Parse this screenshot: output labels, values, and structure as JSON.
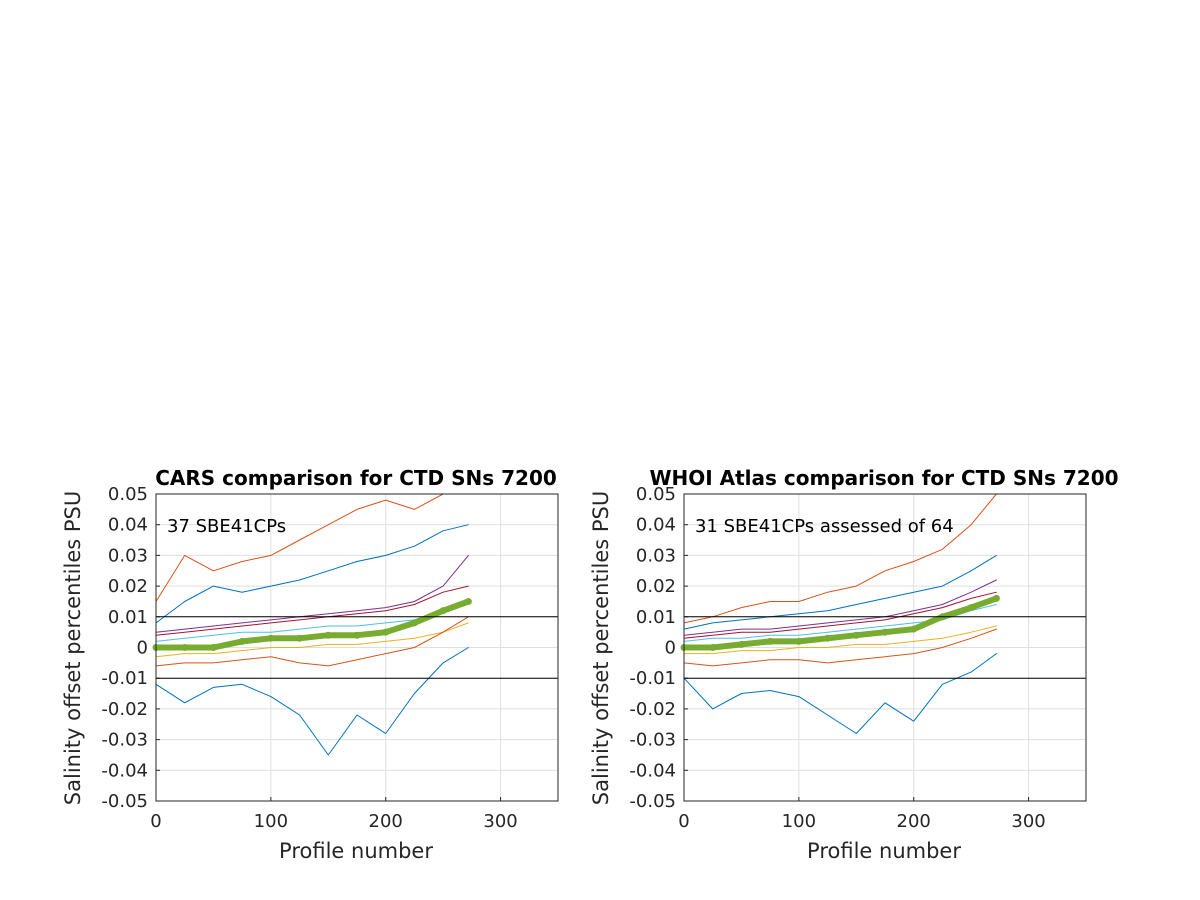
{
  "chart_data": [
    {
      "type": "line",
      "title": "CARS comparison for CTD SNs 7200",
      "xlabel": "Profile number",
      "ylabel": "Salinity offset percentiles PSU",
      "annotation": "37 SBE41CPs",
      "xlim": [
        0,
        350
      ],
      "ylim": [
        -0.05,
        0.05
      ],
      "xticks": [
        "0",
        "100",
        "200",
        "300"
      ],
      "yticks": [
        "-0.05",
        "-0.04",
        "-0.03",
        "-0.02",
        "-0.01",
        "0",
        "0.01",
        "0.02",
        "0.03",
        "0.04",
        "0.05"
      ],
      "grid": true,
      "reference_lines": [
        0.01,
        -0.01
      ],
      "series": [
        {
          "color": "#D95319",
          "x": [
            0,
            25,
            50,
            75,
            100,
            125,
            150,
            175,
            200,
            225,
            250,
            272
          ],
          "values": [
            0.015,
            0.03,
            0.025,
            0.028,
            0.03,
            0.035,
            0.04,
            0.045,
            0.048,
            0.045,
            0.05,
            0.05
          ]
        },
        {
          "color": "#0072BD",
          "x": [
            0,
            25,
            50,
            75,
            100,
            125,
            150,
            175,
            200,
            225,
            250,
            272
          ],
          "values": [
            0.008,
            0.015,
            0.02,
            0.018,
            0.02,
            0.022,
            0.025,
            0.028,
            0.03,
            0.033,
            0.038,
            0.04
          ]
        },
        {
          "color": "#7E2F8E",
          "x": [
            0,
            25,
            50,
            75,
            100,
            125,
            150,
            175,
            200,
            225,
            250,
            272
          ],
          "values": [
            0.005,
            0.006,
            0.007,
            0.008,
            0.009,
            0.01,
            0.011,
            0.012,
            0.013,
            0.015,
            0.02,
            0.03
          ]
        },
        {
          "color": "#A2142F",
          "x": [
            0,
            25,
            50,
            75,
            100,
            125,
            150,
            175,
            200,
            225,
            250,
            272
          ],
          "values": [
            0.004,
            0.005,
            0.006,
            0.007,
            0.008,
            0.009,
            0.01,
            0.011,
            0.012,
            0.014,
            0.018,
            0.02
          ]
        },
        {
          "color": "#4DBEEE",
          "x": [
            0,
            25,
            50,
            75,
            100,
            125,
            150,
            175,
            200,
            225,
            250,
            272
          ],
          "values": [
            0.002,
            0.003,
            0.004,
            0.005,
            0.005,
            0.006,
            0.007,
            0.007,
            0.008,
            0.009,
            0.012,
            0.015
          ]
        },
        {
          "color": "#EDB120",
          "x": [
            0,
            25,
            50,
            75,
            100,
            125,
            150,
            175,
            200,
            225,
            250,
            272
          ],
          "values": [
            -0.003,
            -0.002,
            -0.002,
            -0.001,
            0.0,
            0.0,
            0.001,
            0.001,
            0.002,
            0.003,
            0.005,
            0.008
          ]
        },
        {
          "color": "#D95319",
          "x": [
            0,
            25,
            50,
            75,
            100,
            125,
            150,
            175,
            200,
            225,
            250,
            272
          ],
          "values": [
            -0.006,
            -0.005,
            -0.005,
            -0.004,
            -0.003,
            -0.005,
            -0.006,
            -0.004,
            -0.002,
            0.0,
            0.005,
            0.01
          ]
        },
        {
          "color": "#0072BD",
          "x": [
            0,
            25,
            50,
            75,
            100,
            125,
            150,
            175,
            200,
            225,
            250,
            272
          ],
          "values": [
            -0.012,
            -0.018,
            -0.013,
            -0.012,
            -0.016,
            -0.022,
            -0.035,
            -0.022,
            -0.028,
            -0.015,
            -0.005,
            0.0
          ]
        },
        {
          "color": "#77AC30",
          "x": [
            0,
            25,
            50,
            75,
            100,
            125,
            150,
            175,
            200,
            225,
            250,
            272
          ],
          "values": [
            0.0,
            0.0,
            0.0,
            0.002,
            0.003,
            0.003,
            0.004,
            0.004,
            0.005,
            0.008,
            0.012,
            0.015
          ]
        }
      ]
    },
    {
      "type": "line",
      "title": "WHOI Atlas comparison for CTD SNs 7200",
      "xlabel": "Profile number",
      "ylabel": "Salinity offset percentiles PSU",
      "annotation": "31 SBE41CPs assessed of 64",
      "xlim": [
        0,
        350
      ],
      "ylim": [
        -0.05,
        0.05
      ],
      "xticks": [
        "0",
        "100",
        "200",
        "300"
      ],
      "yticks": [
        "-0.05",
        "-0.04",
        "-0.03",
        "-0.02",
        "-0.01",
        "0",
        "0.01",
        "0.02",
        "0.03",
        "0.04",
        "0.05"
      ],
      "grid": true,
      "reference_lines": [
        0.01,
        -0.01
      ],
      "series": [
        {
          "color": "#D95319",
          "x": [
            0,
            25,
            50,
            75,
            100,
            125,
            150,
            175,
            200,
            225,
            250,
            272
          ],
          "values": [
            0.008,
            0.01,
            0.013,
            0.015,
            0.015,
            0.018,
            0.02,
            0.025,
            0.028,
            0.032,
            0.04,
            0.05
          ]
        },
        {
          "color": "#0072BD",
          "x": [
            0,
            25,
            50,
            75,
            100,
            125,
            150,
            175,
            200,
            225,
            250,
            272
          ],
          "values": [
            0.006,
            0.008,
            0.009,
            0.01,
            0.011,
            0.012,
            0.014,
            0.016,
            0.018,
            0.02,
            0.025,
            0.03
          ]
        },
        {
          "color": "#7E2F8E",
          "x": [
            0,
            25,
            50,
            75,
            100,
            125,
            150,
            175,
            200,
            225,
            250,
            272
          ],
          "values": [
            0.004,
            0.005,
            0.006,
            0.006,
            0.007,
            0.008,
            0.009,
            0.01,
            0.012,
            0.014,
            0.018,
            0.022
          ]
        },
        {
          "color": "#A2142F",
          "x": [
            0,
            25,
            50,
            75,
            100,
            125,
            150,
            175,
            200,
            225,
            250,
            272
          ],
          "values": [
            0.003,
            0.004,
            0.005,
            0.005,
            0.006,
            0.007,
            0.008,
            0.009,
            0.011,
            0.013,
            0.016,
            0.018
          ]
        },
        {
          "color": "#4DBEEE",
          "x": [
            0,
            25,
            50,
            75,
            100,
            125,
            150,
            175,
            200,
            225,
            250,
            272
          ],
          "values": [
            0.002,
            0.003,
            0.003,
            0.004,
            0.004,
            0.005,
            0.006,
            0.007,
            0.008,
            0.009,
            0.012,
            0.014
          ]
        },
        {
          "color": "#EDB120",
          "x": [
            0,
            25,
            50,
            75,
            100,
            125,
            150,
            175,
            200,
            225,
            250,
            272
          ],
          "values": [
            -0.002,
            -0.002,
            -0.001,
            -0.001,
            0.0,
            0.0,
            0.001,
            0.001,
            0.002,
            0.003,
            0.005,
            0.007
          ]
        },
        {
          "color": "#D95319",
          "x": [
            0,
            25,
            50,
            75,
            100,
            125,
            150,
            175,
            200,
            225,
            250,
            272
          ],
          "values": [
            -0.005,
            -0.006,
            -0.005,
            -0.004,
            -0.004,
            -0.005,
            -0.004,
            -0.003,
            -0.002,
            0.0,
            0.003,
            0.006
          ]
        },
        {
          "color": "#0072BD",
          "x": [
            0,
            25,
            50,
            75,
            100,
            125,
            150,
            175,
            200,
            225,
            250,
            272
          ],
          "values": [
            -0.01,
            -0.02,
            -0.015,
            -0.014,
            -0.016,
            -0.022,
            -0.028,
            -0.018,
            -0.024,
            -0.012,
            -0.008,
            -0.002
          ]
        },
        {
          "color": "#77AC30",
          "x": [
            0,
            25,
            50,
            75,
            100,
            125,
            150,
            175,
            200,
            225,
            250,
            272
          ],
          "values": [
            0.0,
            0.0,
            0.001,
            0.002,
            0.002,
            0.003,
            0.004,
            0.005,
            0.006,
            0.01,
            0.013,
            0.016
          ]
        }
      ]
    }
  ]
}
